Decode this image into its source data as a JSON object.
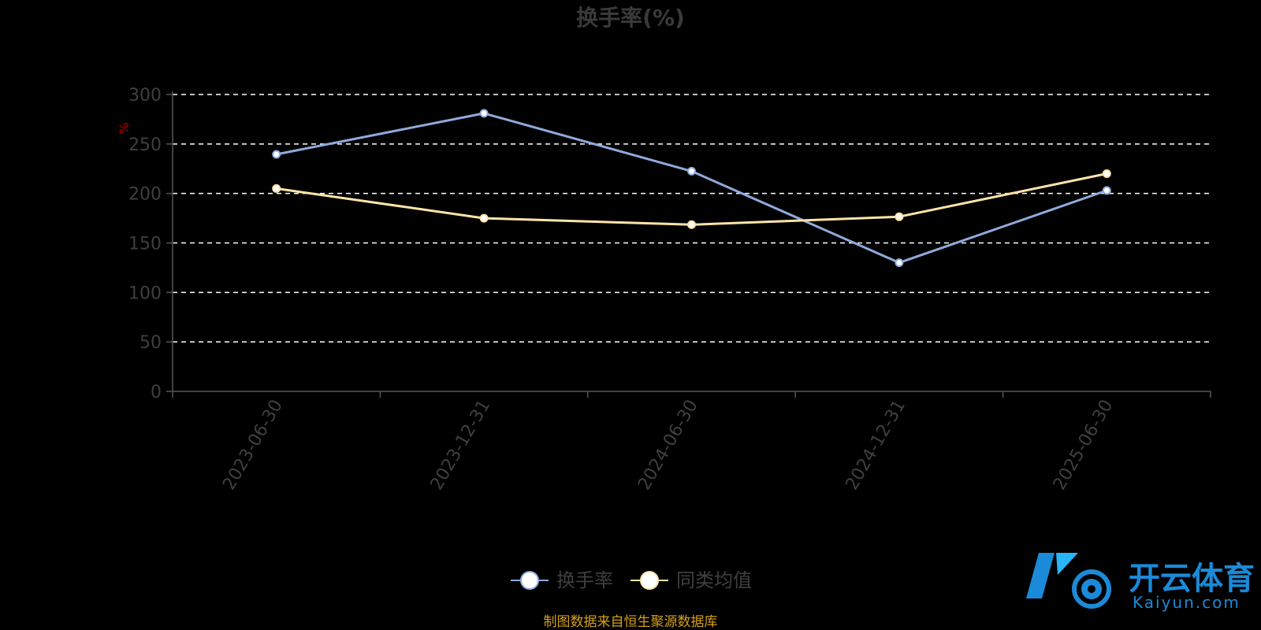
{
  "chart_data": {
    "type": "line",
    "title": "换手率(%)",
    "ylabel": "%",
    "ylim": [
      0,
      300
    ],
    "yticks": [
      0,
      50,
      100,
      150,
      200,
      250,
      300
    ],
    "categories": [
      "2023-06-30",
      "2023-12-31",
      "2024-06-30",
      "2024-12-31",
      "2025-06-30"
    ],
    "series": [
      {
        "name": "换手率",
        "values": [
          239.5,
          281.0,
          222.5,
          130.0,
          203.0
        ],
        "color": "#8faadc"
      },
      {
        "name": "同类均值",
        "values": [
          205.0,
          175.0,
          168.5,
          176.5,
          220.0
        ],
        "color": "#ffe4a8"
      }
    ],
    "grid": true,
    "legend_position": "bottom-center"
  },
  "source_note": "制图数据来自恒生聚源数据库",
  "watermark": {
    "brand_cn": "开云体育",
    "brand_en": "Kaiyun.com"
  },
  "colors": {
    "background": "#000000",
    "axis": "#555555",
    "grid": "#ffffff",
    "point_fill": "#ffffff"
  }
}
